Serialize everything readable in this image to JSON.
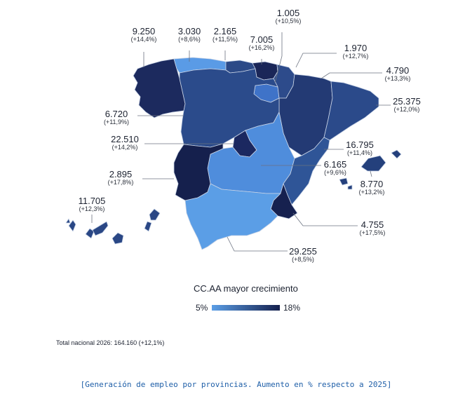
{
  "colors": {
    "low": "#5b9ee6",
    "high": "#15204d",
    "border": "#c9d4e6",
    "leader": "#6b7280"
  },
  "regions": [
    {
      "name": "Galicia",
      "value": "9.250",
      "change": "(+14,4%)",
      "growth": 14.4,
      "fill": "#1c2a5e"
    },
    {
      "name": "Asturias",
      "value": "3.030",
      "change": "(+8,6%)",
      "growth": 8.6,
      "fill": "#5a9be6"
    },
    {
      "name": "Cantabria",
      "value": "2.165",
      "change": "(+11,5%)",
      "growth": 11.5,
      "fill": "#2c4a87"
    },
    {
      "name": "País Vasco",
      "value": "7.005",
      "change": "(+16,2%)",
      "growth": 16.2,
      "fill": "#1a2658"
    },
    {
      "name": "La Rioja",
      "value": "1.005",
      "change": "(+10,5%)",
      "growth": 10.5,
      "fill": "#3f73c8"
    },
    {
      "name": "Navarra",
      "value": "1.970",
      "change": "(+12,7%)",
      "growth": 12.7,
      "fill": "#2d4b8b"
    },
    {
      "name": "Aragón",
      "value": "4.790",
      "change": "(+13,3%)",
      "growth": 13.3,
      "fill": "#233a74"
    },
    {
      "name": "Cataluña",
      "value": "25.375",
      "change": "(+12,0%)",
      "growth": 12.0,
      "fill": "#2b4a8a"
    },
    {
      "name": "Castilla y León",
      "value": "6.720",
      "change": "(+11,9%)",
      "growth": 11.9,
      "fill": "#2b4b8b"
    },
    {
      "name": "Comunidad de Madrid",
      "value": "22.510",
      "change": "(+14,2%)",
      "growth": 14.2,
      "fill": "#1b2860"
    },
    {
      "name": "Castilla-La Mancha",
      "value": "6.165",
      "change": "(+9,6%)",
      "growth": 9.6,
      "fill": "#4f8ddc"
    },
    {
      "name": "Comunitat Valenciana",
      "value": "16.795",
      "change": "(+11,4%)",
      "growth": 11.4,
      "fill": "#2f5597"
    },
    {
      "name": "Illes Balears",
      "value": "8.770",
      "change": "(+13,2%)",
      "growth": 13.2,
      "fill": "#24407c"
    },
    {
      "name": "Extremadura",
      "value": "2.895",
      "change": "(+17,8%)",
      "growth": 17.8,
      "fill": "#15204d"
    },
    {
      "name": "Región de Murcia",
      "value": "4.755",
      "change": "(+17,5%)",
      "growth": 17.5,
      "fill": "#16214f"
    },
    {
      "name": "Andalucía",
      "value": "29.255",
      "change": "(+8,5%)",
      "growth": 8.5,
      "fill": "#5b9ee6"
    },
    {
      "name": "Canarias",
      "value": "11.705",
      "change": "(+12,3%)",
      "growth": 12.3,
      "fill": "#2a4785"
    }
  ],
  "legend": {
    "title": "CC.AA mayor crecimiento",
    "min_label": "5%",
    "max_label": "18%"
  },
  "total_text": "Total nacional 2026: 164.160 (+12,1%)",
  "caption": "[Generación de empleo por provincias. Aumento en % respecto a 2025]"
}
